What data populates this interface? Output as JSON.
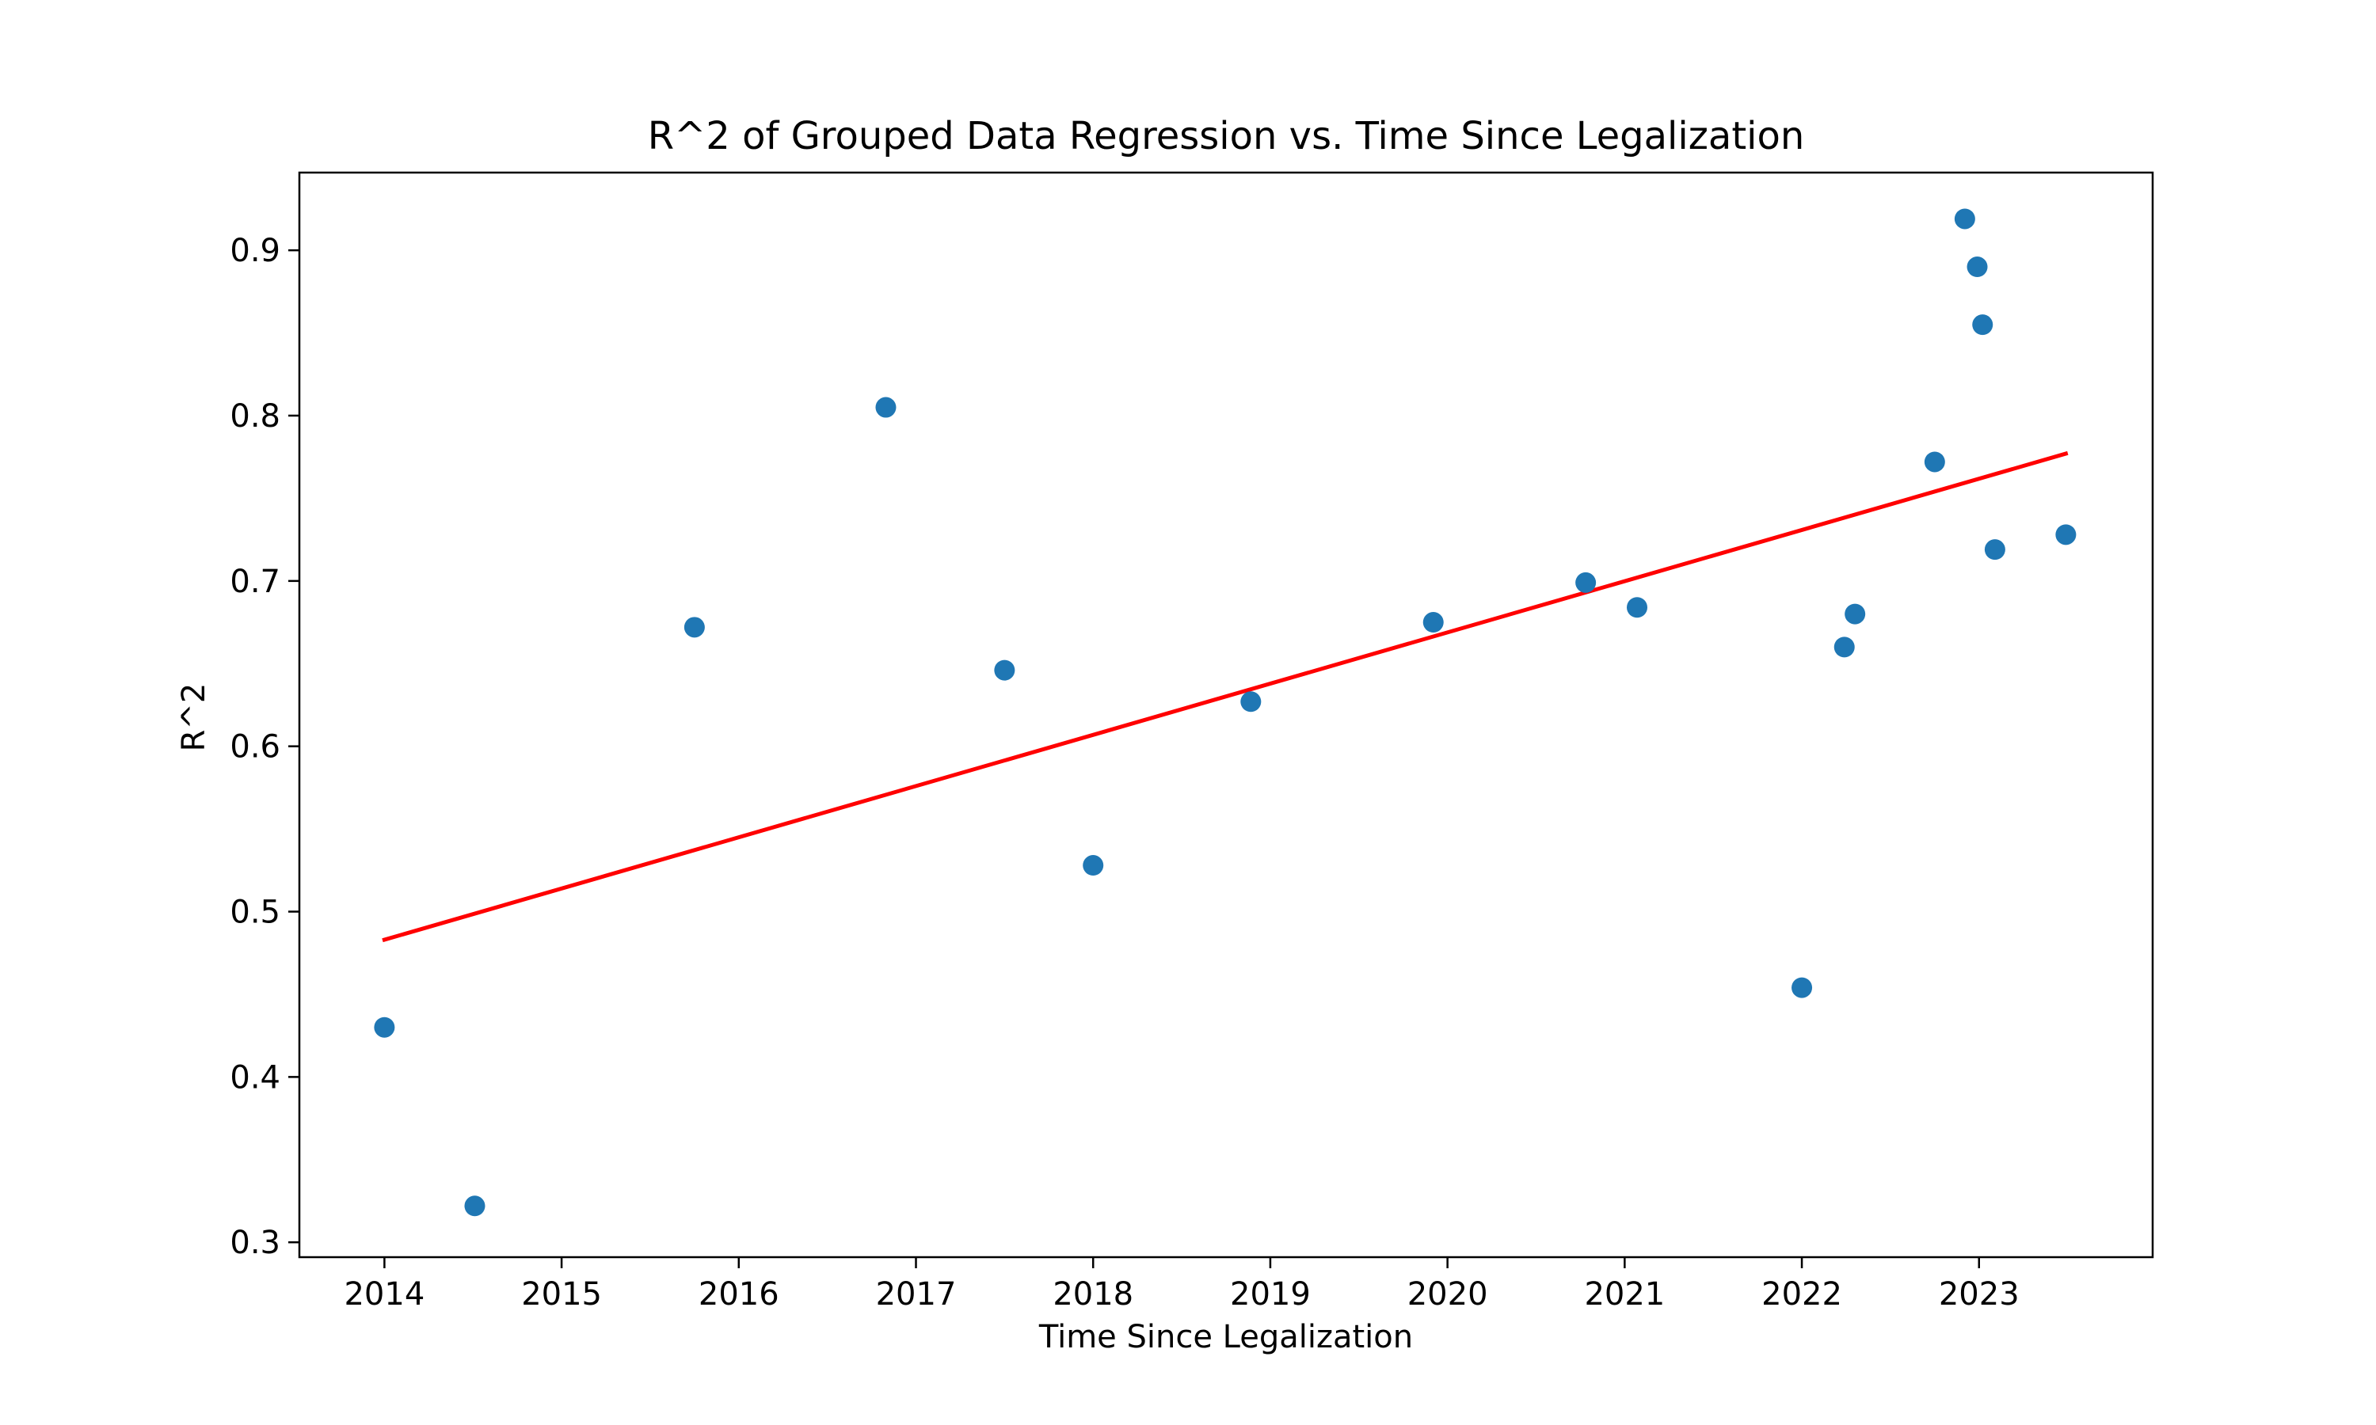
{
  "chart_data": {
    "type": "scatter",
    "title": "R^2 of Grouped Data Regression vs. Time Since Legalization",
    "xlabel": "Time Since Legalization",
    "ylabel": "R^2",
    "xlim": [
      2013.52,
      2023.98
    ],
    "ylim": [
      0.291,
      0.947
    ],
    "xticks": [
      2014,
      2015,
      2016,
      2017,
      2018,
      2019,
      2020,
      2021,
      2022,
      2023
    ],
    "yticks": [
      0.3,
      0.4,
      0.5,
      0.6,
      0.7,
      0.8,
      0.9
    ],
    "grid": false,
    "legend": "none",
    "series": [
      {
        "kind": "scatter",
        "color": "#1f77b4",
        "points": [
          {
            "x": 2014.0,
            "y": 0.43
          },
          {
            "x": 2014.51,
            "y": 0.322
          },
          {
            "x": 2015.75,
            "y": 0.672
          },
          {
            "x": 2016.83,
            "y": 0.805
          },
          {
            "x": 2017.5,
            "y": 0.646
          },
          {
            "x": 2018.0,
            "y": 0.528
          },
          {
            "x": 2018.89,
            "y": 0.627
          },
          {
            "x": 2019.92,
            "y": 0.675
          },
          {
            "x": 2020.78,
            "y": 0.699
          },
          {
            "x": 2021.07,
            "y": 0.684
          },
          {
            "x": 2022.0,
            "y": 0.454
          },
          {
            "x": 2022.24,
            "y": 0.66
          },
          {
            "x": 2022.3,
            "y": 0.68
          },
          {
            "x": 2022.75,
            "y": 0.772
          },
          {
            "x": 2022.92,
            "y": 0.919
          },
          {
            "x": 2022.99,
            "y": 0.89
          },
          {
            "x": 2023.02,
            "y": 0.855
          },
          {
            "x": 2023.09,
            "y": 0.719
          },
          {
            "x": 2023.49,
            "y": 0.728
          }
        ]
      },
      {
        "kind": "line",
        "color": "#ff0000",
        "points": [
          {
            "x": 2014.0,
            "y": 0.483
          },
          {
            "x": 2023.49,
            "y": 0.777
          }
        ]
      }
    ]
  }
}
